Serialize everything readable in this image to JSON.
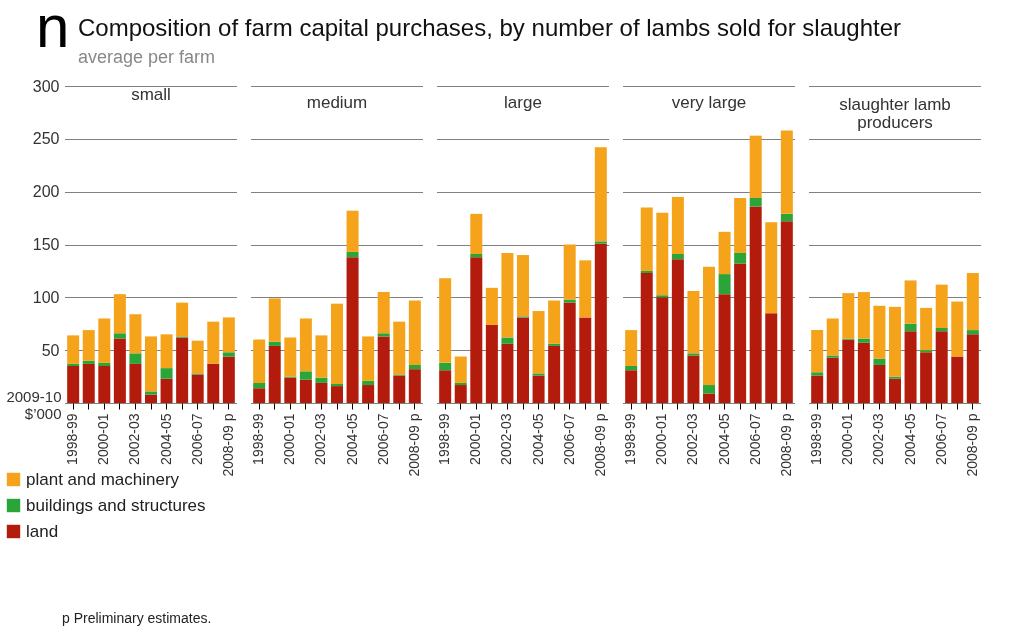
{
  "chart_data": [
    {
      "type": "bar",
      "title": "small",
      "annotations": [
        "n",
        "Composition of farm capital purchases, by number of lambs sold for slaughter",
        "average per farm",
        "p Preliminary estimates."
      ],
      "ylabel": "2009-10 $’000",
      "stacked": true,
      "grid": "y",
      "legend": "bottom left",
      "categories": [
        "1998-99",
        null,
        "2000-01",
        null,
        "2002-03",
        null,
        "2004-05",
        null,
        "2006-07",
        null,
        "2008-09 p"
      ],
      "ylim": [
        0,
        300
      ],
      "yticks": [
        {
          "value": 0,
          "label": null
        },
        50,
        100,
        150,
        200,
        250,
        300
      ],
      "series": [
        {
          "name": "land",
          "color": "#b31b0c",
          "values": [
            35,
            37,
            35,
            61,
            37,
            8,
            23,
            62,
            27,
            37,
            44
          ]
        },
        {
          "name": "buildings and structures",
          "color": "#2ca538",
          "values": [
            2,
            3,
            3,
            5,
            10,
            3,
            10,
            1,
            1,
            0,
            4
          ]
        },
        {
          "name": "plant and machinery",
          "color": "#f5a31a",
          "values": [
            27,
            29,
            42,
            37,
            37,
            52,
            32,
            32,
            31,
            40,
            33
          ]
        }
      ]
    },
    {
      "type": "bar",
      "title": "medium",
      "stacked": true,
      "grid": "y",
      "tick_labels": "x",
      "categories": [
        "1998-99",
        null,
        "2000-01",
        null,
        "2002-03",
        null,
        "2004-05",
        null,
        "2006-07",
        null,
        "2008-09 p"
      ],
      "ylim": [
        0,
        300
      ],
      "yticks": [
        0,
        50,
        100,
        150,
        200,
        250,
        300
      ],
      "series": [
        {
          "name": "land",
          "color": "#b31b0c",
          "values": [
            14,
            54,
            24,
            22,
            19,
            16,
            138,
            17,
            63,
            26,
            32
          ]
        },
        {
          "name": "buildings and structures",
          "color": "#2ca538",
          "values": [
            5,
            4,
            1,
            8,
            5,
            2,
            5,
            4,
            3,
            1,
            4
          ]
        },
        {
          "name": "plant and machinery",
          "color": "#f5a31a",
          "values": [
            41,
            41,
            37,
            50,
            40,
            76,
            39,
            42,
            39,
            50,
            61
          ]
        }
      ]
    },
    {
      "type": "bar",
      "title": "large",
      "stacked": true,
      "grid": "y",
      "tick_labels": "x",
      "categories": [
        "1998-99",
        null,
        "2000-01",
        null,
        "2002-03",
        null,
        "2004-05",
        null,
        "2006-07",
        null,
        "2008-09 p"
      ],
      "ylim": [
        0,
        300
      ],
      "yticks": [
        0,
        50,
        100,
        150,
        200,
        250,
        300
      ],
      "series": [
        {
          "name": "land",
          "color": "#b31b0c",
          "values": [
            31,
            17,
            138,
            74,
            56,
            81,
            26,
            54,
            95,
            81,
            151
          ]
        },
        {
          "name": "buildings and structures",
          "color": "#2ca538",
          "values": [
            7,
            2,
            3,
            0,
            6,
            1,
            2,
            2,
            3,
            0,
            2
          ]
        },
        {
          "name": "plant and machinery",
          "color": "#f5a31a",
          "values": [
            80,
            25,
            38,
            35,
            80,
            58,
            59,
            41,
            52,
            54,
            89
          ]
        }
      ]
    },
    {
      "type": "bar",
      "title": "very large",
      "stacked": true,
      "grid": "y",
      "tick_labels": "x",
      "categories": [
        "1998-99",
        null,
        "2000-01",
        null,
        "2002-03",
        null,
        "2004-05",
        null,
        "2006-07",
        null,
        "2008-09 p"
      ],
      "ylim": [
        0,
        300
      ],
      "yticks": [
        0,
        50,
        100,
        150,
        200,
        250,
        300
      ],
      "series": [
        {
          "name": "land",
          "color": "#b31b0c",
          "values": [
            31,
            123,
            100,
            136,
            45,
            9,
            103,
            132,
            186,
            85,
            172
          ]
        },
        {
          "name": "buildings and structures",
          "color": "#2ca538",
          "values": [
            4,
            2,
            2,
            5,
            2,
            8,
            19,
            10,
            8,
            0,
            7
          ]
        },
        {
          "name": "plant and machinery",
          "color": "#f5a31a",
          "values": [
            34,
            60,
            78,
            54,
            59,
            112,
            40,
            52,
            59,
            86,
            79
          ]
        }
      ]
    },
    {
      "type": "bar",
      "title": "slaughter lamb producers",
      "stacked": true,
      "grid": "y",
      "tick_labels": "x",
      "categories": [
        "1998-99",
        null,
        "2000-01",
        null,
        "2002-03",
        null,
        "2004-05",
        null,
        "2006-07",
        null,
        "2008-09 p"
      ],
      "ylim": [
        0,
        300
      ],
      "yticks": [
        0,
        50,
        100,
        150,
        200,
        250,
        300
      ],
      "series": [
        {
          "name": "land",
          "color": "#b31b0c",
          "values": [
            26,
            43,
            60,
            57,
            36,
            23,
            68,
            48,
            68,
            44,
            65
          ]
        },
        {
          "name": "buildings and structures",
          "color": "#2ca538",
          "values": [
            3,
            2,
            1,
            4,
            6,
            2,
            7,
            2,
            3,
            0,
            4
          ]
        },
        {
          "name": "plant and machinery",
          "color": "#f5a31a",
          "values": [
            40,
            35,
            43,
            44,
            50,
            66,
            41,
            40,
            41,
            52,
            54
          ]
        }
      ]
    }
  ]
}
